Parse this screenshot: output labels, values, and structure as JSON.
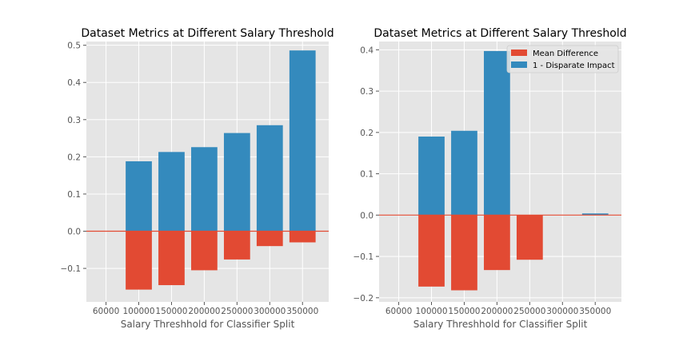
{
  "colors": {
    "background": "#ffffff",
    "panel": "#e5e5e5",
    "grid": "#ffffff",
    "text": "#555555",
    "title": "#000000",
    "mean_difference": "#e24a33",
    "disparate_impact": "#348abd"
  },
  "chart_data": [
    {
      "type": "bar",
      "title": "Dataset Metrics at Different Salary Threshold",
      "xlabel": "Salary Threshhold for Classifier Split",
      "ylabel": "",
      "categories": [
        "60000",
        "100000",
        "150000",
        "200000",
        "250000",
        "300000",
        "350000"
      ],
      "ylim": [
        -0.19,
        0.51
      ],
      "yticks": [
        -0.1,
        0.0,
        0.1,
        0.2,
        0.3,
        0.4,
        0.5
      ],
      "ytick_labels": [
        "−0.1",
        "0.0",
        "0.1",
        "0.2",
        "0.3",
        "0.4",
        "0.5"
      ],
      "grid": true,
      "legend": null,
      "series": [
        {
          "name": "Mean Difference",
          "color": "#e24a33",
          "values": [
            0.0,
            -0.157,
            -0.145,
            -0.105,
            -0.076,
            -0.04,
            -0.03
          ]
        },
        {
          "name": "1 - Disparate Impact",
          "color": "#348abd",
          "values": [
            0.0,
            0.188,
            0.213,
            0.226,
            0.264,
            0.285,
            0.486
          ]
        }
      ]
    },
    {
      "type": "bar",
      "title": "Dataset Metrics at Different Salary Threshold",
      "xlabel": "Salary Threshhold for Classifier Split",
      "ylabel": "",
      "categories": [
        "60000",
        "100000",
        "150000",
        "200000",
        "250000",
        "300000",
        "350000"
      ],
      "ylim": [
        -0.21,
        0.42
      ],
      "yticks": [
        -0.2,
        -0.1,
        0.0,
        0.1,
        0.2,
        0.3,
        0.4
      ],
      "ytick_labels": [
        "−0.2",
        "−0.1",
        "0.0",
        "0.1",
        "0.2",
        "0.3",
        "0.4"
      ],
      "grid": true,
      "legend": "top-right",
      "series": [
        {
          "name": "Mean Difference",
          "color": "#e24a33",
          "values": [
            0.0,
            -0.173,
            -0.182,
            -0.133,
            -0.108,
            0.0,
            0.0
          ]
        },
        {
          "name": "1 - Disparate Impact",
          "color": "#348abd",
          "values": [
            0.0,
            0.19,
            0.204,
            0.397,
            0.0,
            0.0,
            0.004
          ]
        }
      ]
    }
  ]
}
